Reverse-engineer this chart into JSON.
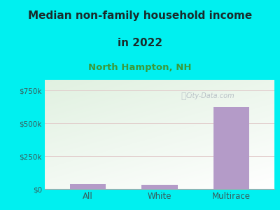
{
  "title_line1": "Median non-family household income",
  "title_line2": "in 2022",
  "subtitle": "North Hampton, NH",
  "categories": [
    "All",
    "White",
    "Multirace"
  ],
  "values": [
    35000,
    30000,
    620000
  ],
  "bar_color": "#b49bc8",
  "bg_outer": "#00f0f0",
  "bg_inner_topleft": "#cee8c8",
  "bg_inner_bottomright": "#f5f8f0",
  "title_color": "#1a2a2a",
  "subtitle_color": "#3a9a3a",
  "tick_color": "#3a5a5a",
  "yticks": [
    0,
    250000,
    500000,
    750000
  ],
  "ytick_labels": [
    "$0",
    "$250k",
    "$500k",
    "$750k"
  ],
  "ylim": [
    0,
    830000
  ],
  "grid_color": "#e0c8c8",
  "watermark": "City-Data.com",
  "title_fontsize": 11,
  "subtitle_fontsize": 9.5
}
